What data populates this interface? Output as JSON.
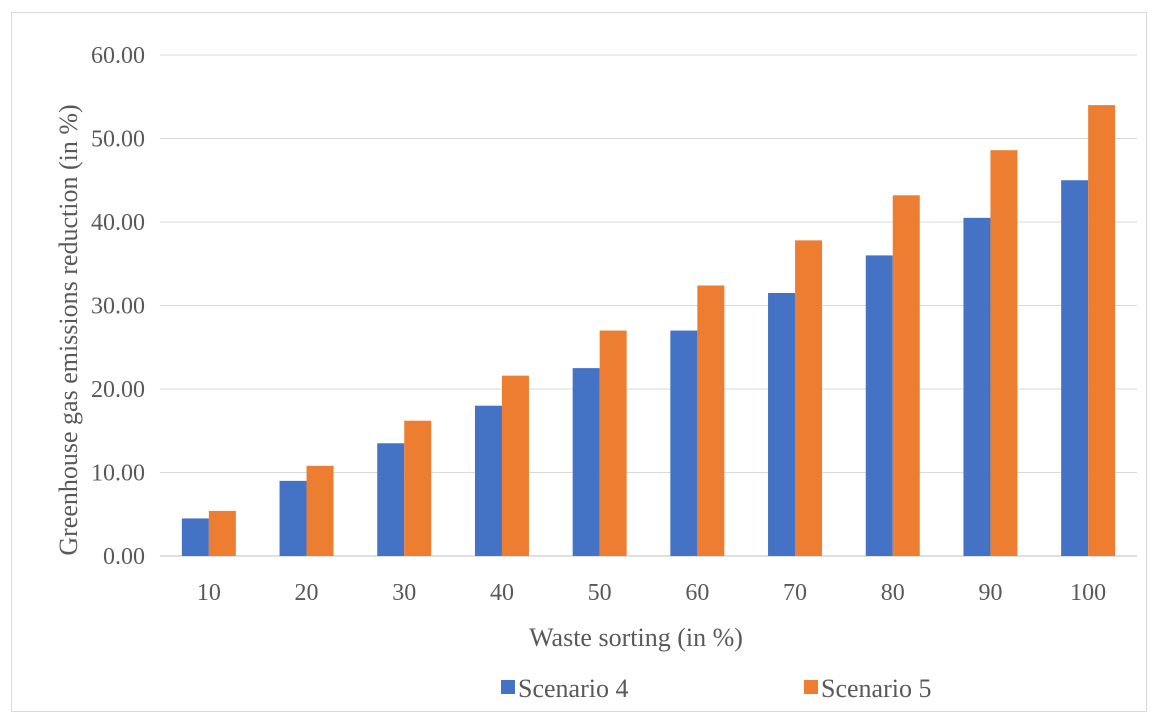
{
  "chart_data": {
    "type": "bar",
    "title": "",
    "xlabel": "Waste sorting (in %)",
    "ylabel": "Greenhouse gas emissions reduction    (in %)",
    "categories": [
      "10",
      "20",
      "30",
      "40",
      "50",
      "60",
      "70",
      "80",
      "90",
      "100"
    ],
    "series": [
      {
        "name": "Scenario 4",
        "color": "#4472c4",
        "values": [
          4.5,
          9.0,
          13.5,
          18.0,
          22.5,
          27.0,
          31.5,
          36.0,
          40.5,
          45.0
        ]
      },
      {
        "name": "Scenario 5",
        "color": "#ed7d31",
        "values": [
          5.4,
          10.8,
          16.2,
          21.6,
          27.0,
          32.4,
          37.8,
          43.2,
          48.6,
          54.0
        ]
      }
    ],
    "ylim": [
      0,
      60
    ],
    "yticks": [
      "0.00",
      "10.00",
      "20.00",
      "30.00",
      "40.00",
      "50.00",
      "60.00"
    ],
    "grid": true,
    "legend_position": "bottom"
  }
}
